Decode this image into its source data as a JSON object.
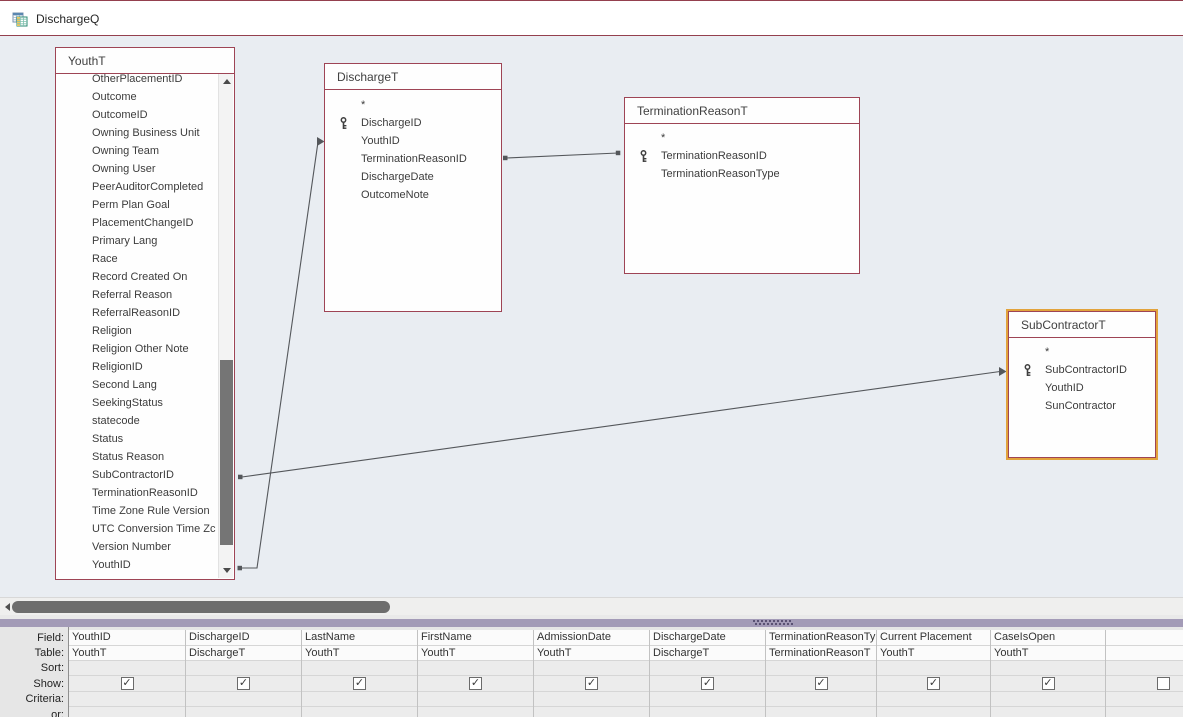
{
  "window": {
    "tab_title": "DischargeQ"
  },
  "design": {
    "tables": [
      {
        "id": "youtht",
        "name": "YouthT",
        "scrollable": true,
        "selected": false,
        "fields": [
          "OtherPlacementID",
          "Outcome",
          "OutcomeID",
          "Owning Business Unit",
          "Owning Team",
          "Owning User",
          "PeerAuditorCompleted",
          "Perm Plan Goal",
          "PlacementChangeID",
          "Primary Lang",
          "Race",
          "Record Created On",
          "Referral Reason",
          "ReferralReasonID",
          "Religion",
          "Religion Other Note",
          "ReligionID",
          "Second Lang",
          "SeekingStatus",
          "statecode",
          "Status",
          "Status Reason",
          "SubContractorID",
          "TerminationReasonID",
          "Time Zone Rule Version",
          "UTC Conversion Time Zc",
          "Version Number",
          "YouthID"
        ]
      },
      {
        "id": "discharget",
        "name": "DischargeT",
        "scrollable": false,
        "selected": false,
        "fields": [
          "*",
          {
            "name": "DischargeID",
            "key": true
          },
          "YouthID",
          "TerminationReasonID",
          "DischargeDate",
          "OutcomeNote"
        ]
      },
      {
        "id": "terminationreasont",
        "name": "TerminationReasonT",
        "scrollable": false,
        "selected": false,
        "fields": [
          "*",
          {
            "name": "TerminationReasonID",
            "key": true
          },
          "TerminationReasonType"
        ]
      },
      {
        "id": "subcontractort",
        "name": "SubContractorT",
        "scrollable": false,
        "selected": true,
        "fields": [
          "*",
          {
            "name": "SubContractorID",
            "key": true
          },
          "YouthID",
          "SunContractor"
        ]
      }
    ],
    "joins": [
      {
        "from": "YouthT.YouthID",
        "to": "DischargeT.YouthID"
      },
      {
        "from": "YouthT.SubContractorID",
        "to": "SubContractorT.SubContractorID"
      },
      {
        "from": "DischargeT.TerminationReasonID",
        "to": "TerminationReasonT.TerminationReasonID"
      }
    ]
  },
  "grid": {
    "row_labels": [
      "Field:",
      "Table:",
      "Sort:",
      "Show:",
      "Criteria:",
      "or:"
    ],
    "columns": [
      {
        "field": "YouthID",
        "table": "YouthT",
        "sort": "",
        "show": true,
        "criteria": "",
        "or": ""
      },
      {
        "field": "DischargeID",
        "table": "DischargeT",
        "sort": "",
        "show": true,
        "criteria": "",
        "or": ""
      },
      {
        "field": "LastName",
        "table": "YouthT",
        "sort": "",
        "show": true,
        "criteria": "",
        "or": ""
      },
      {
        "field": "FirstName",
        "table": "YouthT",
        "sort": "",
        "show": true,
        "criteria": "",
        "or": ""
      },
      {
        "field": "AdmissionDate",
        "table": "YouthT",
        "sort": "",
        "show": true,
        "criteria": "",
        "or": ""
      },
      {
        "field": "DischargeDate",
        "table": "DischargeT",
        "sort": "",
        "show": true,
        "criteria": "",
        "or": ""
      },
      {
        "field": "TerminationReasonType",
        "table": "TerminationReasonT",
        "sort": "",
        "show": true,
        "criteria": "",
        "or": ""
      },
      {
        "field": "Current Placement",
        "table": "YouthT",
        "sort": "",
        "show": true,
        "criteria": "",
        "or": ""
      },
      {
        "field": "CaseIsOpen",
        "table": "YouthT",
        "sort": "",
        "show": true,
        "criteria": "",
        "or": ""
      },
      {
        "field": "",
        "table": "",
        "sort": "",
        "show": false,
        "criteria": "",
        "or": ""
      }
    ]
  },
  "colors": {
    "accent_maroon": "#9e4455",
    "selection_gold": "#e2a33c",
    "design_background": "#e9edf2",
    "splitter_purple": "#a39bb7"
  }
}
